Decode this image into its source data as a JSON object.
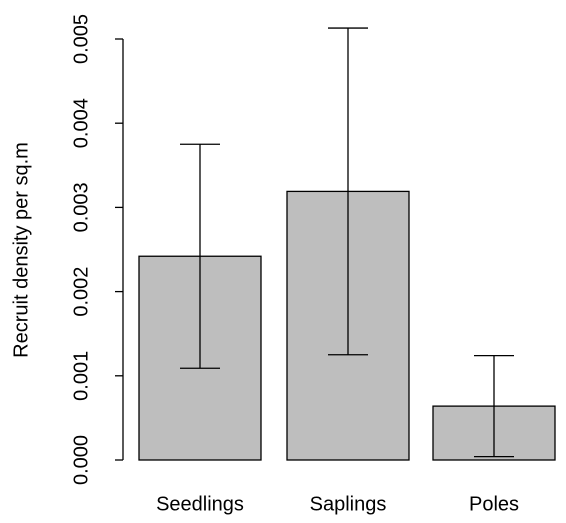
{
  "chart_data": {
    "type": "bar",
    "ylabel": "Recruit density per sq.m",
    "categories": [
      "Seedlings",
      "Saplings",
      "Poles"
    ],
    "values": [
      0.00242,
      0.00319,
      0.00064
    ],
    "errors": [
      0.00133,
      0.00194,
      0.0006
    ],
    "color": "#bebebe",
    "ylim": [
      0,
      0.0052
    ],
    "yticks": [
      {
        "value": 0,
        "label": "0.000"
      },
      {
        "value": 0.001,
        "label": "0.001"
      },
      {
        "value": 0.002,
        "label": "0.002"
      },
      {
        "value": 0.003,
        "label": "0.003"
      },
      {
        "value": 0.004,
        "label": "0.004"
      },
      {
        "value": 0.005,
        "label": "0.005"
      }
    ]
  }
}
